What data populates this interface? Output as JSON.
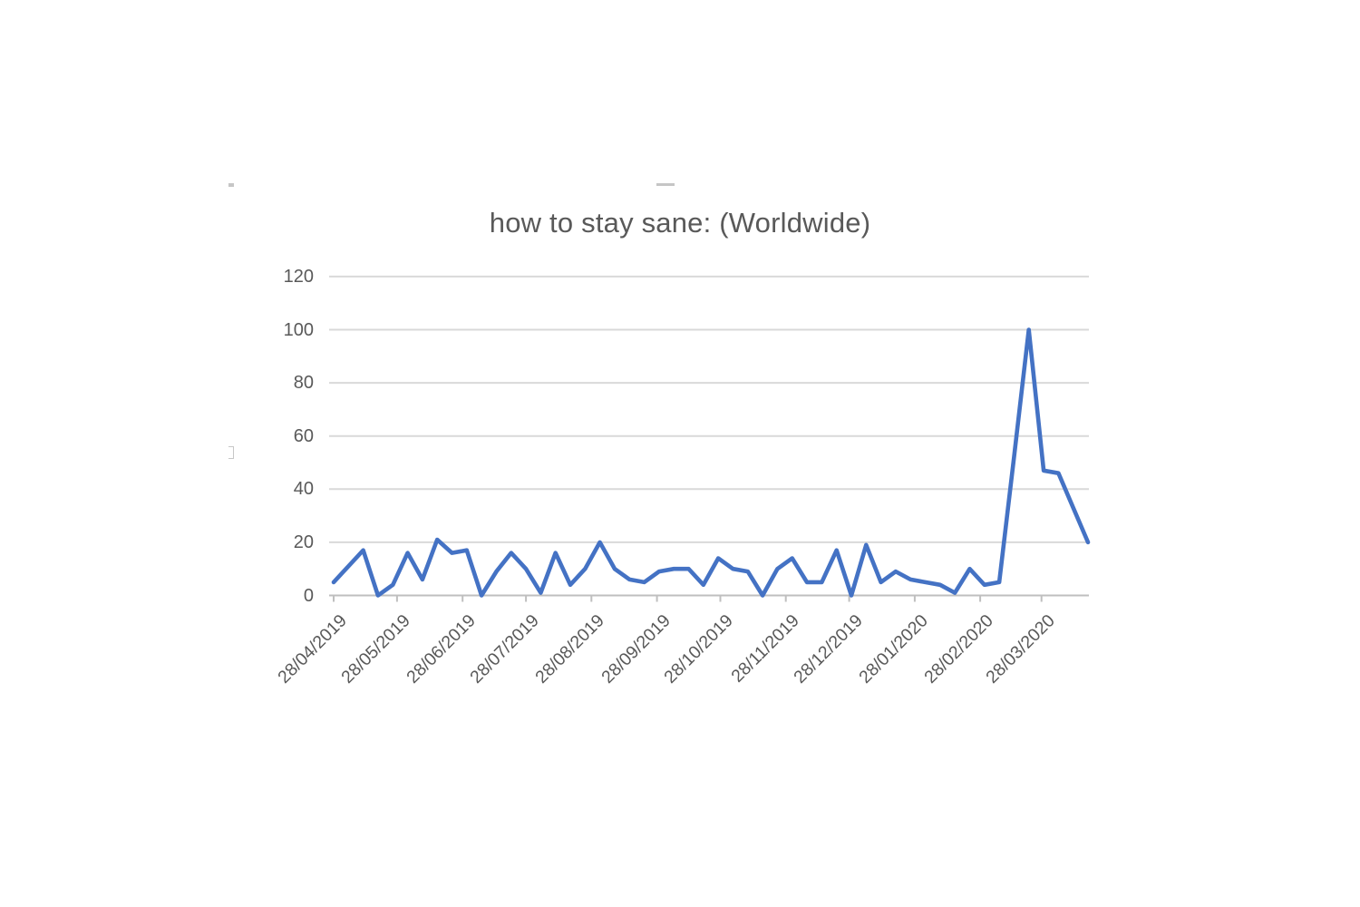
{
  "chart_data": {
    "type": "line",
    "title": "how to stay sane: (Worldwide)",
    "legend": "none",
    "grid": "horizontal",
    "ylim": [
      0,
      120
    ],
    "y_ticks": [
      0,
      20,
      40,
      60,
      80,
      100,
      120
    ],
    "x_tick_labels": [
      "28/04/2019",
      "28/05/2019",
      "28/06/2019",
      "28/07/2019",
      "28/08/2019",
      "28/09/2019",
      "28/10/2019",
      "28/11/2019",
      "28/12/2019",
      "28/01/2020",
      "28/02/2020",
      "28/03/2020"
    ],
    "x_sampling": "weekly",
    "x": [
      "28/04/2019",
      "05/05/2019",
      "12/05/2019",
      "19/05/2019",
      "26/05/2019",
      "02/06/2019",
      "09/06/2019",
      "16/06/2019",
      "23/06/2019",
      "30/06/2019",
      "07/07/2019",
      "14/07/2019",
      "21/07/2019",
      "28/07/2019",
      "04/08/2019",
      "11/08/2019",
      "18/08/2019",
      "25/08/2019",
      "01/09/2019",
      "08/09/2019",
      "15/09/2019",
      "22/09/2019",
      "29/09/2019",
      "06/10/2019",
      "13/10/2019",
      "20/10/2019",
      "27/10/2019",
      "03/11/2019",
      "10/11/2019",
      "17/11/2019",
      "24/11/2019",
      "01/12/2019",
      "08/12/2019",
      "15/12/2019",
      "22/12/2019",
      "29/12/2019",
      "05/01/2020",
      "12/01/2020",
      "19/01/2020",
      "26/01/2020",
      "02/02/2020",
      "09/02/2020",
      "16/02/2020",
      "23/02/2020",
      "01/03/2020",
      "08/03/2020",
      "15/03/2020",
      "22/03/2020",
      "29/03/2020",
      "05/04/2020",
      "12/04/2020",
      "19/04/2020"
    ],
    "series": [
      {
        "name": "how to stay sane",
        "color": "#4472c4",
        "values": [
          5,
          11,
          17,
          0,
          4,
          16,
          6,
          21,
          16,
          17,
          0,
          9,
          16,
          10,
          1,
          16,
          4,
          10,
          20,
          10,
          6,
          5,
          9,
          10,
          10,
          4,
          14,
          10,
          9,
          0,
          10,
          14,
          5,
          5,
          17,
          0,
          19,
          5,
          9,
          6,
          5,
          4,
          1,
          10,
          4,
          5,
          52,
          100,
          47,
          46,
          33,
          20
        ]
      }
    ],
    "colors": {
      "line": "#4472c4",
      "gridline": "#d9d9d9",
      "axis": "#bfbfbf",
      "text": "#595959",
      "background": "#ffffff"
    }
  }
}
